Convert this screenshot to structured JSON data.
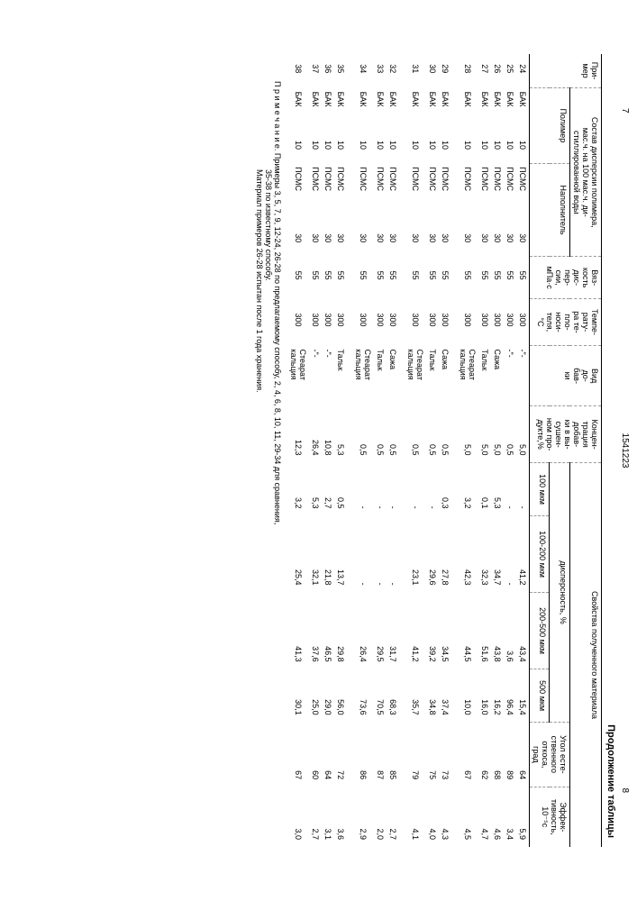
{
  "page_left": "7",
  "doc_number": "1541223",
  "page_right": "8",
  "table_caption": "Продолжение таблицы",
  "headers": {
    "primer": "При-\nмер",
    "sostav": "Состав дисперсии полимера,\nмас.ч. на 100 мас.ч. ди-\nстиллированной воды",
    "polimer": "Полимер",
    "napolnitel": "Наполнитель",
    "vyazkost": "Вяз-\nкость\nдис-\nпер-\nсии,\nмПа·с",
    "temp": "Темпе-\nрату-\nра те-\nпло-\nноси-\nтеля,\n°С",
    "vid": "Вид\nдо-\nбав-\nки",
    "koncen": "Концен-\nтрация\nдобав-\nки в вы-\nсушен-\nном про-\nдукте,%",
    "svoistva": "Свойства полученного материала",
    "dispers": "дисперсность, %",
    "d100": "100 мкм",
    "d100_200": "100-200 мкм",
    "d200_500": "200-500 мкм",
    "d500": "500 мкм",
    "ugol": "Угол есте-\nственного\nоткоса,\nград",
    "effekt": "Эффек-\nтивность,\n10⁻⁵с"
  },
  "rows": [
    {
      "n": "24",
      "pol": "БАК",
      "polv": "10",
      "nap": "ПСМС",
      "napv": "30",
      "vis": "55",
      "t": "300",
      "vid": "-\"-",
      "kon": "5,0",
      "d1": "-",
      "d2": "41,2",
      "d3": "43,4",
      "d4": "15,4",
      "ug": "64",
      "ef": "5,9"
    },
    {
      "n": "25",
      "pol": "БАК",
      "polv": "10",
      "nap": "ПСМС",
      "napv": "30",
      "vis": "55",
      "t": "300",
      "vid": "-\"-",
      "kon": "0,5",
      "d1": "-",
      "d2": "-",
      "d3": "3,6",
      "d4": "96,4",
      "ug": "89",
      "ef": "3,4"
    },
    {
      "n": "26",
      "pol": "БАК",
      "polv": "10",
      "nap": "ПСМС",
      "napv": "30",
      "vis": "55",
      "t": "300",
      "vid": "Сажа",
      "kon": "5,0",
      "d1": "5,3",
      "d2": "34,7",
      "d3": "43,8",
      "d4": "16,2",
      "ug": "68",
      "ef": "4,6"
    },
    {
      "n": "27",
      "pol": "БАК",
      "polv": "10",
      "nap": "ПСМС",
      "napv": "30",
      "vis": "55",
      "t": "300",
      "vid": "Тальк",
      "kon": "5,0",
      "d1": "0,1",
      "d2": "32,3",
      "d3": "51,6",
      "d4": "16,0",
      "ug": "62",
      "ef": "4,7"
    },
    {
      "n": "28",
      "pol": "БАК",
      "polv": "10",
      "nap": "ПСМС",
      "napv": "30",
      "vis": "55",
      "t": "300",
      "vid": "Стеарат\nкальция",
      "kon": "5,0",
      "d1": "3,2",
      "d2": "42,3",
      "d3": "44,5",
      "d4": "10,0",
      "ug": "67",
      "ef": "4,5"
    },
    {
      "sep": true
    },
    {
      "n": "29",
      "pol": "БАК",
      "polv": "10",
      "nap": "ПСМС",
      "napv": "30",
      "vis": "55",
      "t": "300",
      "vid": "Сажа",
      "kon": "0,5",
      "d1": "0,3",
      "d2": "27,8",
      "d3": "34,5",
      "d4": "37,4",
      "ug": "73",
      "ef": "4,3"
    },
    {
      "n": "30",
      "pol": "БАК",
      "polv": "10",
      "nap": "ПСМС",
      "napv": "30",
      "vis": "55",
      "t": "300",
      "vid": "Тальк",
      "kon": "0,5",
      "d1": "-",
      "d2": "29,6",
      "d3": "39,2",
      "d4": "34,8",
      "ug": "75",
      "ef": "4,0"
    },
    {
      "n": "31",
      "pol": "БАК",
      "polv": "10",
      "nap": "ПСМС",
      "napv": "30",
      "vis": "55",
      "t": "300",
      "vid": "Стеарат\nкальция",
      "kon": "0,5",
      "d1": "-",
      "d2": "23,1",
      "d3": "41,2",
      "d4": "35,7",
      "ug": "79",
      "ef": "4,1"
    },
    {
      "sep": true
    },
    {
      "n": "32",
      "pol": "БАК",
      "polv": "10",
      "nap": "ПСМС",
      "napv": "30",
      "vis": "55",
      "t": "300",
      "vid": "Сажа",
      "kon": "0,5",
      "d1": "-",
      "d2": "-",
      "d3": "31,7",
      "d4": "68,3",
      "ug": "85",
      "ef": "2,7"
    },
    {
      "n": "33",
      "pol": "БАК",
      "polv": "10",
      "nap": "ПСМС",
      "napv": "30",
      "vis": "55",
      "t": "300",
      "vid": "Тальк",
      "kon": "0,5",
      "d1": "-",
      "d2": "-",
      "d3": "29,5",
      "d4": "70,5",
      "ug": "87",
      "ef": "2,0"
    },
    {
      "n": "34",
      "pol": "БАК",
      "polv": "10",
      "nap": "ПСМС",
      "napv": "30",
      "vis": "55",
      "t": "300",
      "vid": "Стеарат\nкальция",
      "kon": "0,5",
      "d1": "-",
      "d2": "-",
      "d3": "26,4",
      "d4": "73,6",
      "ug": "86",
      "ef": "2,9"
    },
    {
      "sep": true
    },
    {
      "n": "35",
      "pol": "БАК",
      "polv": "10",
      "nap": "ПСМС",
      "napv": "30",
      "vis": "55",
      "t": "300",
      "vid": "Тальк",
      "kon": "5,3",
      "d1": "0,5",
      "d2": "13,7",
      "d3": "29,8",
      "d4": "56,0",
      "ug": "72",
      "ef": "3,6"
    },
    {
      "n": "36",
      "pol": "БАК",
      "polv": "10",
      "nap": "ПСМС",
      "napv": "30",
      "vis": "55",
      "t": "300",
      "vid": "-\"-",
      "kon": "10,8",
      "d1": "2,7",
      "d2": "21,8",
      "d3": "46,5",
      "d4": "29,0",
      "ug": "64",
      "ef": "3,1"
    },
    {
      "n": "37",
      "pol": "БАК",
      "polv": "10",
      "nap": "ПСМС",
      "napv": "30",
      "vis": "55",
      "t": "300",
      "vid": "-\"-",
      "kon": "26,4",
      "d1": "5,3",
      "d2": "32,1",
      "d3": "37,6",
      "d4": "25,0",
      "ug": "60",
      "ef": "2,7"
    },
    {
      "n": "38",
      "pol": "БАК",
      "polv": "10",
      "nap": "ПСМС",
      "napv": "30",
      "vis": "55",
      "t": "300",
      "vid": "Стеарат\nкальция",
      "kon": "12,3",
      "d1": "3,2",
      "d2": "25,4",
      "d3": "41,3",
      "d4": "30,1",
      "ug": "67",
      "ef": "3,0"
    }
  ],
  "footnote_label": "П р и м е ч а н и е.",
  "footnote_line1": "Примеры 3, 5, 7, 9, 12-24, 26-28 по предлагаемому способу, 2, 4, 6, 8, 10, 11, 29-34 для сравнения,",
  "footnote_line2": "35-38 по известному способу.",
  "footnote_line3": "Материал примеров 26-28 испытан после 1 года хранения."
}
